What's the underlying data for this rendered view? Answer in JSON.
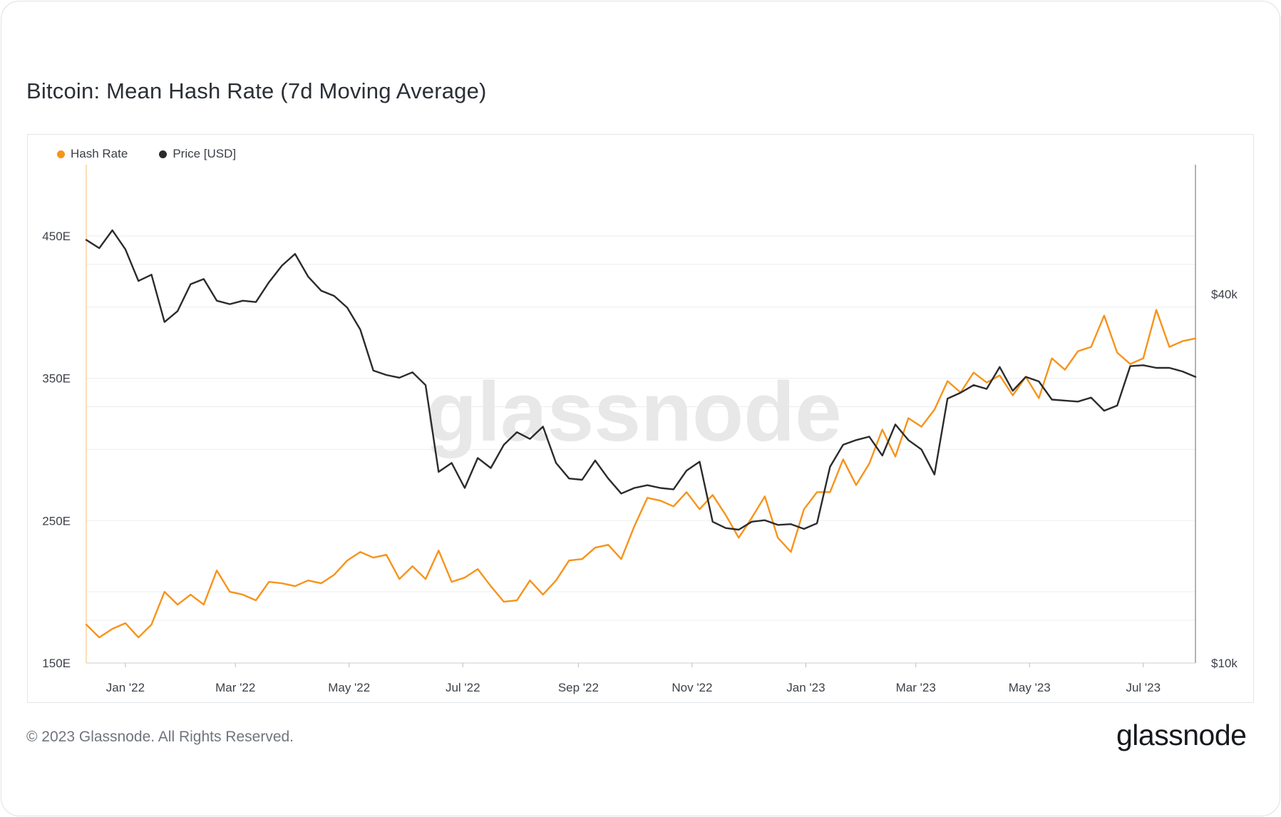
{
  "title": "Bitcoin: Mean Hash Rate (7d Moving Average)",
  "footer": "© 2023 Glassnode. All Rights Reserved.",
  "brand": "glassnode",
  "watermark": "glassnode",
  "colors": {
    "hash_rate": "#f7931a",
    "price": "#2b2b2b",
    "grid": "#ebedf0",
    "axis_text": "#3d4148"
  },
  "chart_data": {
    "type": "line",
    "title": "Bitcoin: Mean Hash Rate (7d Moving Average)",
    "legend_position": "top-left",
    "grid": true,
    "x_range": [
      "2021-12-11",
      "2023-07-29"
    ],
    "x_ticks": [
      {
        "date": "2022-01-01",
        "label": "Jan '22"
      },
      {
        "date": "2022-03-01",
        "label": "Mar '22"
      },
      {
        "date": "2022-05-01",
        "label": "May '22"
      },
      {
        "date": "2022-07-01",
        "label": "Jul '22"
      },
      {
        "date": "2022-09-01",
        "label": "Sep '22"
      },
      {
        "date": "2022-11-01",
        "label": "Nov '22"
      },
      {
        "date": "2023-01-01",
        "label": "Jan '23"
      },
      {
        "date": "2023-03-01",
        "label": "Mar '23"
      },
      {
        "date": "2023-05-01",
        "label": "May '23"
      },
      {
        "date": "2023-07-01",
        "label": "Jul '23"
      }
    ],
    "y_left": {
      "label": "",
      "range": [
        150,
        500
      ],
      "ticks": [
        {
          "value": 150,
          "label": "150E"
        },
        {
          "value": 250,
          "label": "250E"
        },
        {
          "value": 350,
          "label": "350E"
        },
        {
          "value": 450,
          "label": "450E"
        }
      ]
    },
    "y_right": {
      "label": "",
      "scale": "log",
      "range": [
        10000,
        65000
      ],
      "ticks": [
        {
          "value": 10000,
          "label": "$10k"
        },
        {
          "value": 40000,
          "label": "$40k"
        }
      ]
    },
    "series": [
      {
        "name": "Hash Rate",
        "axis": "left",
        "points": [
          [
            "2021-12-11",
            177
          ],
          [
            "2021-12-18",
            168
          ],
          [
            "2021-12-25",
            174
          ],
          [
            "2022-01-01",
            178
          ],
          [
            "2022-01-08",
            168
          ],
          [
            "2022-01-15",
            177
          ],
          [
            "2022-01-22",
            200
          ],
          [
            "2022-01-29",
            191
          ],
          [
            "2022-02-05",
            198
          ],
          [
            "2022-02-12",
            191
          ],
          [
            "2022-02-19",
            215
          ],
          [
            "2022-02-26",
            200
          ],
          [
            "2022-03-05",
            198
          ],
          [
            "2022-03-12",
            194
          ],
          [
            "2022-03-19",
            207
          ],
          [
            "2022-03-26",
            206
          ],
          [
            "2022-04-02",
            204
          ],
          [
            "2022-04-09",
            208
          ],
          [
            "2022-04-16",
            206
          ],
          [
            "2022-04-23",
            212
          ],
          [
            "2022-04-30",
            222
          ],
          [
            "2022-05-07",
            228
          ],
          [
            "2022-05-14",
            224
          ],
          [
            "2022-05-21",
            226
          ],
          [
            "2022-05-28",
            209
          ],
          [
            "2022-06-04",
            218
          ],
          [
            "2022-06-11",
            209
          ],
          [
            "2022-06-18",
            229
          ],
          [
            "2022-06-25",
            207
          ],
          [
            "2022-07-02",
            210
          ],
          [
            "2022-07-09",
            216
          ],
          [
            "2022-07-16",
            204
          ],
          [
            "2022-07-23",
            193
          ],
          [
            "2022-07-30",
            194
          ],
          [
            "2022-08-06",
            208
          ],
          [
            "2022-08-13",
            198
          ],
          [
            "2022-08-20",
            208
          ],
          [
            "2022-08-27",
            222
          ],
          [
            "2022-09-03",
            223
          ],
          [
            "2022-09-10",
            231
          ],
          [
            "2022-09-17",
            233
          ],
          [
            "2022-09-24",
            223
          ],
          [
            "2022-10-01",
            246
          ],
          [
            "2022-10-08",
            266
          ],
          [
            "2022-10-15",
            264
          ],
          [
            "2022-10-22",
            260
          ],
          [
            "2022-10-29",
            270
          ],
          [
            "2022-11-05",
            258
          ],
          [
            "2022-11-12",
            268
          ],
          [
            "2022-11-19",
            254
          ],
          [
            "2022-11-26",
            238
          ],
          [
            "2022-12-03",
            252
          ],
          [
            "2022-12-10",
            267
          ],
          [
            "2022-12-17",
            238
          ],
          [
            "2022-12-24",
            228
          ],
          [
            "2022-12-31",
            258
          ],
          [
            "2023-01-07",
            270
          ],
          [
            "2023-01-14",
            270
          ],
          [
            "2023-01-21",
            293
          ],
          [
            "2023-01-28",
            275
          ],
          [
            "2023-02-04",
            290
          ],
          [
            "2023-02-11",
            314
          ],
          [
            "2023-02-18",
            295
          ],
          [
            "2023-02-25",
            322
          ],
          [
            "2023-03-04",
            316
          ],
          [
            "2023-03-11",
            328
          ],
          [
            "2023-03-18",
            348
          ],
          [
            "2023-03-25",
            340
          ],
          [
            "2023-04-01",
            354
          ],
          [
            "2023-04-08",
            347
          ],
          [
            "2023-04-15",
            352
          ],
          [
            "2023-04-22",
            338
          ],
          [
            "2023-04-29",
            351
          ],
          [
            "2023-05-06",
            336
          ],
          [
            "2023-05-13",
            364
          ],
          [
            "2023-05-20",
            356
          ],
          [
            "2023-05-27",
            369
          ],
          [
            "2023-06-03",
            372
          ],
          [
            "2023-06-10",
            394
          ],
          [
            "2023-06-17",
            368
          ],
          [
            "2023-06-24",
            360
          ],
          [
            "2023-07-01",
            364
          ],
          [
            "2023-07-08",
            398
          ],
          [
            "2023-07-15",
            372
          ],
          [
            "2023-07-22",
            376
          ],
          [
            "2023-07-29",
            378
          ]
        ]
      },
      {
        "name": "Price [USD]",
        "axis": "right",
        "points": [
          [
            "2021-12-11",
            49000
          ],
          [
            "2021-12-18",
            47500
          ],
          [
            "2021-12-25",
            50800
          ],
          [
            "2022-01-01",
            47300
          ],
          [
            "2022-01-08",
            42000
          ],
          [
            "2022-01-15",
            43000
          ],
          [
            "2022-01-22",
            36000
          ],
          [
            "2022-01-29",
            37500
          ],
          [
            "2022-02-05",
            41500
          ],
          [
            "2022-02-12",
            42300
          ],
          [
            "2022-02-19",
            39000
          ],
          [
            "2022-02-26",
            38500
          ],
          [
            "2022-03-05",
            39000
          ],
          [
            "2022-03-12",
            38800
          ],
          [
            "2022-03-19",
            41800
          ],
          [
            "2022-03-26",
            44500
          ],
          [
            "2022-04-02",
            46500
          ],
          [
            "2022-04-09",
            42700
          ],
          [
            "2022-04-16",
            40500
          ],
          [
            "2022-04-23",
            39700
          ],
          [
            "2022-04-30",
            38000
          ],
          [
            "2022-05-07",
            35000
          ],
          [
            "2022-05-14",
            30000
          ],
          [
            "2022-05-21",
            29500
          ],
          [
            "2022-05-28",
            29200
          ],
          [
            "2022-06-04",
            29800
          ],
          [
            "2022-06-11",
            28400
          ],
          [
            "2022-06-18",
            20500
          ],
          [
            "2022-06-25",
            21200
          ],
          [
            "2022-07-02",
            19300
          ],
          [
            "2022-07-09",
            21600
          ],
          [
            "2022-07-16",
            20800
          ],
          [
            "2022-07-23",
            22700
          ],
          [
            "2022-07-30",
            23800
          ],
          [
            "2022-08-06",
            23200
          ],
          [
            "2022-08-13",
            24300
          ],
          [
            "2022-08-20",
            21200
          ],
          [
            "2022-08-27",
            20000
          ],
          [
            "2022-09-03",
            19900
          ],
          [
            "2022-09-10",
            21400
          ],
          [
            "2022-09-17",
            20000
          ],
          [
            "2022-09-24",
            18900
          ],
          [
            "2022-10-01",
            19300
          ],
          [
            "2022-10-08",
            19500
          ],
          [
            "2022-10-15",
            19300
          ],
          [
            "2022-10-22",
            19200
          ],
          [
            "2022-10-29",
            20600
          ],
          [
            "2022-11-05",
            21300
          ],
          [
            "2022-11-12",
            17000
          ],
          [
            "2022-11-19",
            16600
          ],
          [
            "2022-11-26",
            16500
          ],
          [
            "2022-12-03",
            17000
          ],
          [
            "2022-12-10",
            17100
          ],
          [
            "2022-12-17",
            16800
          ],
          [
            "2022-12-24",
            16850
          ],
          [
            "2022-12-31",
            16550
          ],
          [
            "2023-01-07",
            16900
          ],
          [
            "2023-01-14",
            20900
          ],
          [
            "2023-01-21",
            22700
          ],
          [
            "2023-01-28",
            23100
          ],
          [
            "2023-02-04",
            23400
          ],
          [
            "2023-02-11",
            21800
          ],
          [
            "2023-02-18",
            24500
          ],
          [
            "2023-02-25",
            23100
          ],
          [
            "2023-03-04",
            22300
          ],
          [
            "2023-03-11",
            20300
          ],
          [
            "2023-03-18",
            27000
          ],
          [
            "2023-03-25",
            27600
          ],
          [
            "2023-04-01",
            28400
          ],
          [
            "2023-04-08",
            28000
          ],
          [
            "2023-04-15",
            30400
          ],
          [
            "2023-04-22",
            27800
          ],
          [
            "2023-04-29",
            29300
          ],
          [
            "2023-05-06",
            28800
          ],
          [
            "2023-05-13",
            26900
          ],
          [
            "2023-05-20",
            26800
          ],
          [
            "2023-05-27",
            26700
          ],
          [
            "2023-06-03",
            27100
          ],
          [
            "2023-06-10",
            25800
          ],
          [
            "2023-06-17",
            26300
          ],
          [
            "2023-06-24",
            30500
          ],
          [
            "2023-07-01",
            30600
          ],
          [
            "2023-07-08",
            30300
          ],
          [
            "2023-07-15",
            30300
          ],
          [
            "2023-07-22",
            29900
          ],
          [
            "2023-07-29",
            29300
          ]
        ]
      }
    ]
  }
}
